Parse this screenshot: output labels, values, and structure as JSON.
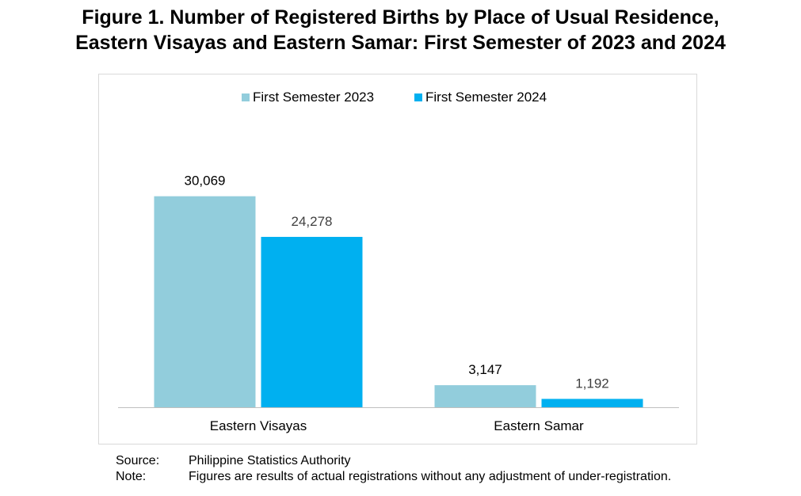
{
  "title": {
    "line1": "Figure 1. Number of Registered Births by Place of Usual Residence,",
    "line2": "Eastern Visayas and Eastern Samar: First Semester of 2023 and 2024"
  },
  "chart_data": {
    "type": "bar",
    "categories": [
      "Eastern Visayas",
      "Eastern Samar"
    ],
    "series": [
      {
        "name": "First Semester 2023",
        "values": [
          30069,
          3147
        ],
        "labels": [
          "30,069",
          "3,147"
        ],
        "color": "#92cddc"
      },
      {
        "name": "First Semester 2024",
        "values": [
          24278,
          1192
        ],
        "labels": [
          "24,278",
          "1,192"
        ],
        "color": "#00b0f0"
      }
    ],
    "ylim": [
      0,
      35000
    ],
    "grid": false,
    "legend": "top-center"
  },
  "footer": {
    "source_label": "Source:",
    "source_text": "Philippine Statistics Authority",
    "note_label": "Note:",
    "note_text": "Figures are results of actual registrations without any adjustment of under-registration."
  }
}
